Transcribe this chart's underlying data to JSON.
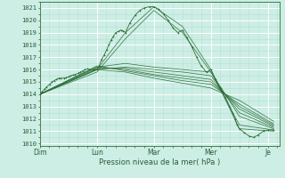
{
  "xlabel": "Pression niveau de la mer( hPa )",
  "ylim": [
    1009.8,
    1021.5
  ],
  "yticks": [
    1010,
    1011,
    1012,
    1013,
    1014,
    1015,
    1016,
    1017,
    1018,
    1019,
    1020,
    1021
  ],
  "xtick_labels": [
    "Dim",
    "Lun",
    "Mar",
    "Mer",
    "Je"
  ],
  "xtick_pos": [
    0,
    1,
    2,
    3,
    4
  ],
  "xlim": [
    0,
    4.2
  ],
  "bg_color": "#cceee4",
  "grid_major_color": "#ffffff",
  "grid_minor_color": "#b8ddd5",
  "line_color": "#2d6e3a",
  "lines": [
    {
      "x": [
        0.0,
        1.0,
        1.5,
        2.0,
        2.5,
        3.0,
        3.5,
        4.1
      ],
      "y": [
        1014.0,
        1016.0,
        1019.0,
        1021.1,
        1019.5,
        1016.0,
        1011.2,
        1011.0
      ]
    },
    {
      "x": [
        0.0,
        1.0,
        1.5,
        2.0,
        2.5,
        3.0,
        3.5,
        4.1
      ],
      "y": [
        1014.0,
        1015.8,
        1018.5,
        1020.8,
        1019.0,
        1015.8,
        1011.5,
        1011.1
      ]
    },
    {
      "x": [
        0.0,
        1.0,
        1.5,
        2.0,
        2.5,
        3.0,
        3.5,
        4.1
      ],
      "y": [
        1014.0,
        1016.2,
        1016.5,
        1016.2,
        1016.0,
        1015.8,
        1012.2,
        1011.2
      ]
    },
    {
      "x": [
        0.0,
        1.0,
        1.5,
        2.0,
        2.5,
        3.0,
        3.5,
        4.1
      ],
      "y": [
        1014.0,
        1016.0,
        1016.2,
        1016.0,
        1015.8,
        1015.5,
        1012.5,
        1011.3
      ]
    },
    {
      "x": [
        0.0,
        1.0,
        1.5,
        2.0,
        2.5,
        3.0,
        3.5,
        4.1
      ],
      "y": [
        1014.0,
        1016.1,
        1016.1,
        1015.8,
        1015.5,
        1015.2,
        1012.8,
        1011.4
      ]
    },
    {
      "x": [
        0.0,
        1.0,
        1.5,
        2.0,
        2.5,
        3.0,
        3.5,
        4.1
      ],
      "y": [
        1014.0,
        1016.2,
        1016.0,
        1015.6,
        1015.3,
        1015.0,
        1013.0,
        1011.5
      ]
    },
    {
      "x": [
        0.0,
        1.0,
        1.5,
        2.0,
        2.5,
        3.0,
        3.5,
        4.1
      ],
      "y": [
        1014.0,
        1016.3,
        1015.9,
        1015.5,
        1015.1,
        1014.8,
        1013.2,
        1011.6
      ]
    },
    {
      "x": [
        0.0,
        1.0,
        1.5,
        2.0,
        2.5,
        3.0,
        3.5,
        4.1
      ],
      "y": [
        1014.0,
        1016.0,
        1015.8,
        1015.3,
        1014.9,
        1014.5,
        1013.5,
        1011.8
      ]
    }
  ],
  "detailed_line_x": [
    0.0,
    0.04,
    0.08,
    0.12,
    0.17,
    0.21,
    0.25,
    0.29,
    0.33,
    0.37,
    0.42,
    0.46,
    0.5,
    0.54,
    0.58,
    0.62,
    0.67,
    0.71,
    0.75,
    0.79,
    0.83,
    0.87,
    0.92,
    0.96,
    1.0,
    1.04,
    1.08,
    1.13,
    1.17,
    1.21,
    1.25,
    1.29,
    1.33,
    1.38,
    1.42,
    1.46,
    1.5,
    1.58,
    1.67,
    1.75,
    1.83,
    1.92,
    2.0,
    2.08,
    2.17,
    2.25,
    2.33,
    2.42,
    2.5,
    2.58,
    2.67,
    2.75,
    2.83,
    2.92,
    3.0,
    3.08,
    3.17,
    3.25,
    3.33,
    3.38,
    3.42,
    3.46,
    3.5,
    3.58,
    3.67,
    3.75,
    3.83,
    3.92,
    4.0,
    4.1
  ],
  "detailed_line_y": [
    1014.0,
    1014.2,
    1014.4,
    1014.6,
    1014.8,
    1015.0,
    1015.1,
    1015.2,
    1015.3,
    1015.3,
    1015.3,
    1015.35,
    1015.4,
    1015.5,
    1015.55,
    1015.6,
    1015.7,
    1015.8,
    1015.9,
    1016.0,
    1016.05,
    1016.0,
    1016.0,
    1016.0,
    1016.0,
    1016.3,
    1016.8,
    1017.2,
    1017.6,
    1018.0,
    1018.4,
    1018.7,
    1019.0,
    1019.1,
    1019.2,
    1019.15,
    1019.0,
    1019.8,
    1020.4,
    1020.8,
    1021.0,
    1021.1,
    1021.1,
    1020.9,
    1020.5,
    1020.0,
    1019.4,
    1019.0,
    1019.2,
    1018.6,
    1017.8,
    1017.0,
    1016.3,
    1015.8,
    1016.0,
    1015.2,
    1014.5,
    1013.8,
    1013.0,
    1012.5,
    1012.0,
    1011.5,
    1011.2,
    1010.9,
    1010.6,
    1010.5,
    1010.7,
    1011.0,
    1011.1,
    1011.1
  ]
}
